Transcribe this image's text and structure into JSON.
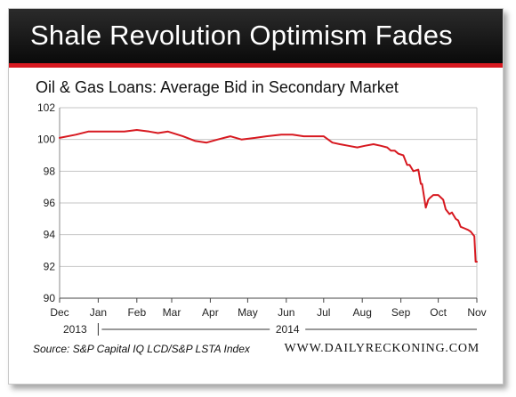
{
  "banner": {
    "title": "Shale Revolution Optimism Fades"
  },
  "footer": {
    "source": "Source: S&P Capital IQ LCD/S&P LSTA Index",
    "site": "WWW.DAILYRECKONING.COM"
  },
  "colors": {
    "line": "#d71920",
    "banner_bg": "#111111",
    "accent": "#d71920"
  },
  "chart_data": {
    "type": "line",
    "title": "Oil & Gas Loans: Average Bid in Secondary Market",
    "xlabel": "",
    "ylabel": "",
    "ylim": [
      90,
      102
    ],
    "yticks": [
      90,
      92,
      94,
      96,
      98,
      100,
      102
    ],
    "xlim": [
      "2013-12-01",
      "2014-11-01"
    ],
    "xticks": [
      {
        "label": "Dec",
        "date": "2013-12-01"
      },
      {
        "label": "Jan",
        "date": "2014-01-01"
      },
      {
        "label": "Feb",
        "date": "2014-02-01"
      },
      {
        "label": "Mar",
        "date": "2014-03-01"
      },
      {
        "label": "Apr",
        "date": "2014-04-01"
      },
      {
        "label": "May",
        "date": "2014-05-01"
      },
      {
        "label": "Jun",
        "date": "2014-06-01"
      },
      {
        "label": "Jul",
        "date": "2014-07-01"
      },
      {
        "label": "Aug",
        "date": "2014-08-01"
      },
      {
        "label": "Sep",
        "date": "2014-09-01"
      },
      {
        "label": "Oct",
        "date": "2014-10-01"
      },
      {
        "label": "Nov",
        "date": "2014-11-01"
      }
    ],
    "year_labels": [
      {
        "label": "2013",
        "from": "2013-12-01",
        "to": "2014-01-01"
      },
      {
        "label": "2014",
        "from": "2014-01-01",
        "to": "2014-11-01"
      }
    ],
    "grid": "horizontal",
    "series": [
      {
        "color": "#d71920",
        "x": [
          "2013-12-01",
          "2013-12-14",
          "2013-12-24",
          "2014-01-14",
          "2014-01-22",
          "2014-02-01",
          "2014-02-11",
          "2014-02-18",
          "2014-02-26",
          "2014-03-10",
          "2014-03-20",
          "2014-03-29",
          "2014-04-07",
          "2014-04-17",
          "2014-04-26",
          "2014-05-07",
          "2014-05-16",
          "2014-05-28",
          "2014-06-06",
          "2014-06-15",
          "2014-06-21",
          "2014-06-26",
          "2014-07-01",
          "2014-07-08",
          "2014-07-14",
          "2014-07-21",
          "2014-07-28",
          "2014-08-03",
          "2014-08-10",
          "2014-08-16",
          "2014-08-21",
          "2014-08-24",
          "2014-08-27",
          "2014-08-30",
          "2014-09-03",
          "2014-09-06",
          "2014-09-08",
          "2014-09-11",
          "2014-09-15",
          "2014-09-17",
          "2014-09-18",
          "2014-09-21",
          "2014-09-23",
          "2014-09-24",
          "2014-09-27",
          "2014-10-01",
          "2014-10-05",
          "2014-10-07",
          "2014-10-10",
          "2014-10-12",
          "2014-10-15",
          "2014-10-17",
          "2014-10-19",
          "2014-10-22",
          "2014-10-25",
          "2014-10-27",
          "2014-10-30",
          "2014-10-31",
          "2014-11-01"
        ],
        "y": [
          100.1,
          100.3,
          100.5,
          100.5,
          100.5,
          100.6,
          100.5,
          100.4,
          100.5,
          100.2,
          99.9,
          99.8,
          100.0,
          100.2,
          100.0,
          100.1,
          100.2,
          100.3,
          100.3,
          100.2,
          100.2,
          100.2,
          100.2,
          99.8,
          99.7,
          99.6,
          99.5,
          99.6,
          99.7,
          99.6,
          99.5,
          99.3,
          99.3,
          99.1,
          99.0,
          98.4,
          98.4,
          98.0,
          98.1,
          97.2,
          97.2,
          95.7,
          96.2,
          96.3,
          96.5,
          96.5,
          96.2,
          95.6,
          95.3,
          95.4,
          95.0,
          94.9,
          94.5,
          94.4,
          94.3,
          94.2,
          93.9,
          92.3,
          92.3
        ]
      }
    ]
  }
}
